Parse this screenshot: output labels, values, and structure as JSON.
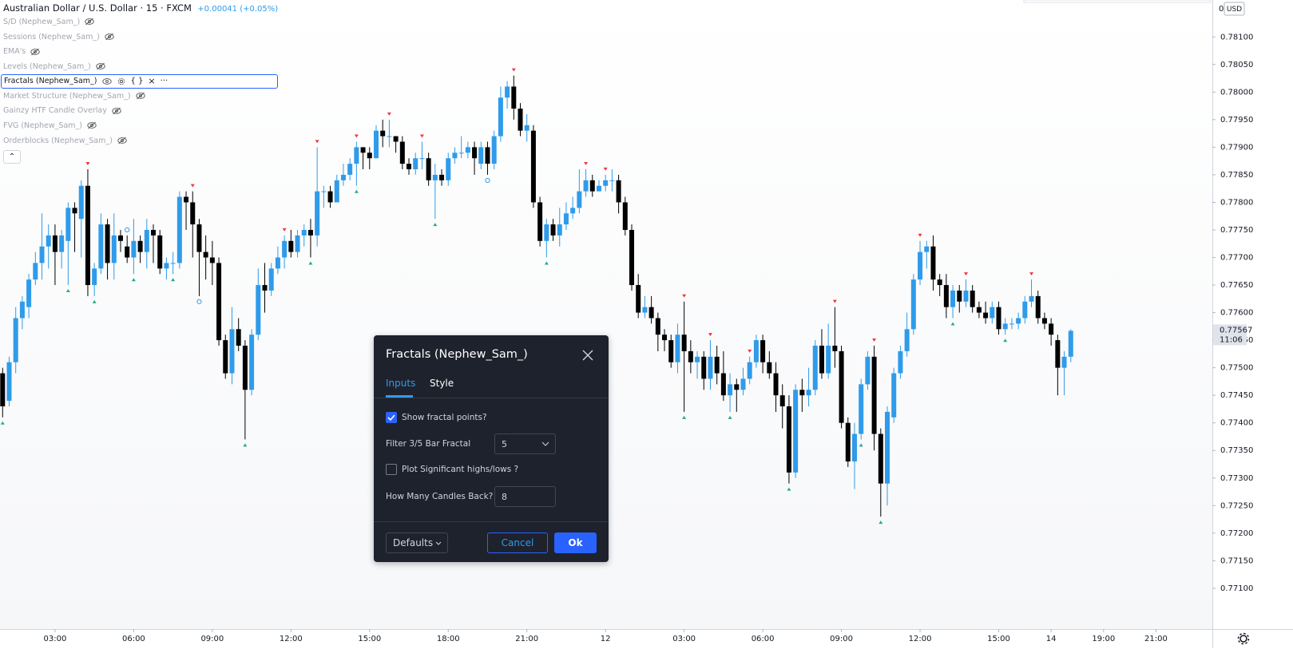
{
  "legend": {
    "symbol": "Australian Dollar / U.S. Dollar · 15 · FXCM",
    "change": "+0.00041 (+0.05%)"
  },
  "indicators": [
    "S/D (Nephew_Sam_)",
    "Sessions (Nephew_Sam_)",
    "EMA's",
    "Levels (Nephew_Sam_)",
    "Fractals (Nephew_Sam_)",
    "Market Structure (Nephew_Sam_)",
    "Gainzy HTF Candle Overlay",
    "FVG (Nephew_Sam_)",
    "Orderblocks (Nephew_Sam_)"
  ],
  "price_axis": {
    "top_label": "0",
    "currency": "USD"
  },
  "chart_data": {
    "type": "candlestick",
    "up_color": "#2f9bea",
    "down_color": "#000000",
    "high_marker_color": "#f23645",
    "low_marker_color": "#22ab94",
    "circle_color": "#2f9bea",
    "xlim": [
      -0.4,
      184.6
    ],
    "ylim": [
      0.77026,
      0.78167
    ],
    "xticks": [
      {
        "value": 8,
        "label": "03:00"
      },
      {
        "value": 20,
        "label": "06:00"
      },
      {
        "value": 32,
        "label": "09:00"
      },
      {
        "value": 44,
        "label": "12:00"
      },
      {
        "value": 56,
        "label": "15:00"
      },
      {
        "value": 68,
        "label": "18:00"
      },
      {
        "value": 80,
        "label": "21:00"
      },
      {
        "value": 92,
        "label": "12"
      },
      {
        "value": 104,
        "label": "03:00"
      },
      {
        "value": 116,
        "label": "06:00"
      },
      {
        "value": 128,
        "label": "09:00"
      },
      {
        "value": 140,
        "label": "12:00"
      },
      {
        "value": 152,
        "label": "15:00"
      },
      {
        "value": 160,
        "label": "14"
      },
      {
        "value": 168,
        "label": "19:00"
      },
      {
        "value": 176,
        "label": "21:00"
      }
    ],
    "yticks": [
      {
        "value": 0.781,
        "label": "0.78100"
      },
      {
        "value": 0.7805,
        "label": "0.78050"
      },
      {
        "value": 0.78,
        "label": "0.78000"
      },
      {
        "value": 0.7795,
        "label": "0.77950"
      },
      {
        "value": 0.779,
        "label": "0.77900"
      },
      {
        "value": 0.7785,
        "label": "0.77850"
      },
      {
        "value": 0.778,
        "label": "0.77800"
      },
      {
        "value": 0.7775,
        "label": "0.77750"
      },
      {
        "value": 0.777,
        "label": "0.77700"
      },
      {
        "value": 0.7765,
        "label": "0.77650"
      },
      {
        "value": 0.776,
        "label": "0.77600"
      },
      {
        "value": 0.7755,
        "label": "0.77550"
      },
      {
        "value": 0.775,
        "label": "0.77500"
      },
      {
        "value": 0.7745,
        "label": "0.77450"
      },
      {
        "value": 0.774,
        "label": "0.77400"
      },
      {
        "value": 0.7735,
        "label": "0.77350"
      },
      {
        "value": 0.773,
        "label": "0.77300"
      },
      {
        "value": 0.7725,
        "label": "0.77250"
      },
      {
        "value": 0.772,
        "label": "0.77200"
      },
      {
        "value": 0.7715,
        "label": "0.77150"
      },
      {
        "value": 0.771,
        "label": "0.77100"
      }
    ],
    "last_price": {
      "value": 0.77567,
      "label": "0.77567"
    },
    "countdown": "11:06",
    "candles": [
      [
        0.7749,
        0.775,
        0.7741,
        0.7743
      ],
      [
        0.7744,
        0.7752,
        0.7743,
        0.7751
      ],
      [
        0.7751,
        0.7761,
        0.7749,
        0.7759
      ],
      [
        0.7759,
        0.7763,
        0.7757,
        0.7762
      ],
      [
        0.7761,
        0.7767,
        0.7759,
        0.7766
      ],
      [
        0.7766,
        0.7771,
        0.7765,
        0.7769
      ],
      [
        0.7769,
        0.7778,
        0.7766,
        0.7772
      ],
      [
        0.7772,
        0.7776,
        0.7768,
        0.7774
      ],
      [
        0.7774,
        0.7776,
        0.7765,
        0.7771
      ],
      [
        0.7771,
        0.7775,
        0.7768,
        0.7774
      ],
      [
        0.7773,
        0.778,
        0.7765,
        0.7779
      ],
      [
        0.7779,
        0.778,
        0.7771,
        0.7778
      ],
      [
        0.7777,
        0.7784,
        0.777,
        0.7783
      ],
      [
        0.7783,
        0.7786,
        0.7763,
        0.7765
      ],
      [
        0.7765,
        0.7769,
        0.7763,
        0.7768
      ],
      [
        0.7768,
        0.7778,
        0.7767,
        0.7776
      ],
      [
        0.7776,
        0.7777,
        0.7766,
        0.7769
      ],
      [
        0.7769,
        0.7778,
        0.7766,
        0.7774
      ],
      [
        0.7774,
        0.7775,
        0.7771,
        0.7773
      ],
      [
        0.7772,
        0.7774,
        0.7769,
        0.777
      ],
      [
        0.777,
        0.7777,
        0.7767,
        0.7773
      ],
      [
        0.7773,
        0.7774,
        0.7769,
        0.7771
      ],
      [
        0.7771,
        0.7777,
        0.7768,
        0.7775
      ],
      [
        0.7775,
        0.7776,
        0.7769,
        0.7774
      ],
      [
        0.7774,
        0.7775,
        0.7767,
        0.7768
      ],
      [
        0.7768,
        0.777,
        0.7766,
        0.7769
      ],
      [
        0.7769,
        0.7771,
        0.7767,
        0.7769
      ],
      [
        0.7769,
        0.7782,
        0.7768,
        0.7781
      ],
      [
        0.7781,
        0.7782,
        0.7775,
        0.778
      ],
      [
        0.778,
        0.7782,
        0.777,
        0.7776
      ],
      [
        0.7776,
        0.7777,
        0.7763,
        0.7771
      ],
      [
        0.7771,
        0.7774,
        0.7766,
        0.777
      ],
      [
        0.777,
        0.7773,
        0.7765,
        0.7769
      ],
      [
        0.7769,
        0.777,
        0.7754,
        0.7755
      ],
      [
        0.7755,
        0.7756,
        0.7748,
        0.7749
      ],
      [
        0.7749,
        0.7761,
        0.7747,
        0.7757
      ],
      [
        0.7757,
        0.7759,
        0.7753,
        0.7754
      ],
      [
        0.7754,
        0.7755,
        0.7737,
        0.7746
      ],
      [
        0.7746,
        0.7757,
        0.7745,
        0.7756
      ],
      [
        0.7756,
        0.7768,
        0.7755,
        0.7765
      ],
      [
        0.7765,
        0.7769,
        0.776,
        0.7764
      ],
      [
        0.7764,
        0.7769,
        0.7763,
        0.7768
      ],
      [
        0.7768,
        0.7772,
        0.7767,
        0.777
      ],
      [
        0.777,
        0.7774,
        0.7768,
        0.7773
      ],
      [
        0.7773,
        0.7775,
        0.777,
        0.7771
      ],
      [
        0.7771,
        0.7775,
        0.777,
        0.7774
      ],
      [
        0.7774,
        0.7776,
        0.7772,
        0.7775
      ],
      [
        0.7775,
        0.7777,
        0.777,
        0.7774
      ],
      [
        0.7774,
        0.779,
        0.7772,
        0.7782
      ],
      [
        0.7782,
        0.7783,
        0.7779,
        0.7782
      ],
      [
        0.7782,
        0.7783,
        0.7779,
        0.778
      ],
      [
        0.778,
        0.7785,
        0.778,
        0.7784
      ],
      [
        0.7784,
        0.7787,
        0.7783,
        0.7785
      ],
      [
        0.7785,
        0.7788,
        0.7784,
        0.7787
      ],
      [
        0.7787,
        0.7791,
        0.7783,
        0.779
      ],
      [
        0.779,
        0.779,
        0.7786,
        0.7789
      ],
      [
        0.7789,
        0.779,
        0.7786,
        0.7788
      ],
      [
        0.7788,
        0.7794,
        0.7788,
        0.7793
      ],
      [
        0.7793,
        0.7795,
        0.779,
        0.7792
      ],
      [
        0.7792,
        0.7795,
        0.779,
        0.7792
      ],
      [
        0.7792,
        0.7792,
        0.7789,
        0.7791
      ],
      [
        0.7791,
        0.7792,
        0.7786,
        0.7787
      ],
      [
        0.7787,
        0.7788,
        0.7785,
        0.7786
      ],
      [
        0.7786,
        0.7789,
        0.7785,
        0.7788
      ],
      [
        0.7788,
        0.7791,
        0.7786,
        0.7788
      ],
      [
        0.7788,
        0.7789,
        0.7783,
        0.7784
      ],
      [
        0.7784,
        0.7787,
        0.7777,
        0.7785
      ],
      [
        0.7785,
        0.7786,
        0.7783,
        0.7784
      ],
      [
        0.7784,
        0.7789,
        0.7783,
        0.7788
      ],
      [
        0.7788,
        0.779,
        0.7787,
        0.7789
      ],
      [
        0.7789,
        0.7792,
        0.7788,
        0.7789
      ],
      [
        0.7789,
        0.7791,
        0.7788,
        0.779
      ],
      [
        0.779,
        0.7791,
        0.7785,
        0.7788
      ],
      [
        0.7787,
        0.7791,
        0.7786,
        0.779
      ],
      [
        0.779,
        0.7791,
        0.7785,
        0.7787
      ],
      [
        0.7787,
        0.7793,
        0.7786,
        0.7792
      ],
      [
        0.7792,
        0.7801,
        0.7791,
        0.7799
      ],
      [
        0.7799,
        0.7802,
        0.7797,
        0.7801
      ],
      [
        0.7801,
        0.7803,
        0.7795,
        0.7797
      ],
      [
        0.7797,
        0.7798,
        0.7792,
        0.7793
      ],
      [
        0.7793,
        0.7796,
        0.7791,
        0.7794
      ],
      [
        0.7793,
        0.7794,
        0.7779,
        0.778
      ],
      [
        0.778,
        0.7781,
        0.7772,
        0.7773
      ],
      [
        0.7773,
        0.7777,
        0.777,
        0.7776
      ],
      [
        0.7776,
        0.7777,
        0.7773,
        0.7774
      ],
      [
        0.7774,
        0.7779,
        0.7772,
        0.7776
      ],
      [
        0.7776,
        0.778,
        0.7775,
        0.7778
      ],
      [
        0.7778,
        0.7781,
        0.7777,
        0.7779
      ],
      [
        0.7779,
        0.7786,
        0.7778,
        0.7782
      ],
      [
        0.7782,
        0.7786,
        0.7781,
        0.7784
      ],
      [
        0.7784,
        0.7785,
        0.7781,
        0.7782
      ],
      [
        0.7782,
        0.7784,
        0.7782,
        0.7783
      ],
      [
        0.7783,
        0.7785,
        0.7782,
        0.7784
      ],
      [
        0.7784,
        0.7786,
        0.7782,
        0.7784
      ],
      [
        0.7784,
        0.7785,
        0.7778,
        0.778
      ],
      [
        0.778,
        0.7781,
        0.7774,
        0.7775
      ],
      [
        0.7775,
        0.7776,
        0.7764,
        0.7765
      ],
      [
        0.7765,
        0.7767,
        0.7759,
        0.776
      ],
      [
        0.776,
        0.7763,
        0.7759,
        0.7761
      ],
      [
        0.7761,
        0.7763,
        0.7758,
        0.7759
      ],
      [
        0.7759,
        0.776,
        0.7753,
        0.7756
      ],
      [
        0.7756,
        0.7757,
        0.7753,
        0.7755
      ],
      [
        0.7755,
        0.7756,
        0.775,
        0.7751
      ],
      [
        0.7751,
        0.7758,
        0.7749,
        0.7756
      ],
      [
        0.7756,
        0.7762,
        0.7742,
        0.7753
      ],
      [
        0.7753,
        0.7755,
        0.7749,
        0.7751
      ],
      [
        0.7751,
        0.7753,
        0.7748,
        0.7752
      ],
      [
        0.7752,
        0.7753,
        0.7746,
        0.7748
      ],
      [
        0.7748,
        0.7755,
        0.7746,
        0.7752
      ],
      [
        0.7752,
        0.7754,
        0.7747,
        0.7749
      ],
      [
        0.7749,
        0.7753,
        0.7744,
        0.7745
      ],
      [
        0.7745,
        0.7749,
        0.7742,
        0.7747
      ],
      [
        0.7747,
        0.7748,
        0.7742,
        0.7746
      ],
      [
        0.7746,
        0.775,
        0.7745,
        0.7748
      ],
      [
        0.7748,
        0.7752,
        0.7747,
        0.7751
      ],
      [
        0.7751,
        0.7756,
        0.775,
        0.7755
      ],
      [
        0.7755,
        0.7756,
        0.7749,
        0.7751
      ],
      [
        0.7751,
        0.7753,
        0.7748,
        0.7749
      ],
      [
        0.7749,
        0.7751,
        0.7742,
        0.7745
      ],
      [
        0.7745,
        0.7747,
        0.7739,
        0.7743
      ],
      [
        0.7743,
        0.7745,
        0.7729,
        0.7731
      ],
      [
        0.7731,
        0.7747,
        0.773,
        0.7746
      ],
      [
        0.7746,
        0.7748,
        0.7742,
        0.7745
      ],
      [
        0.7745,
        0.775,
        0.7743,
        0.7746
      ],
      [
        0.7746,
        0.7755,
        0.7745,
        0.7754
      ],
      [
        0.7754,
        0.7757,
        0.7748,
        0.7749
      ],
      [
        0.7749,
        0.7758,
        0.7748,
        0.7754
      ],
      [
        0.7754,
        0.7761,
        0.775,
        0.7753
      ],
      [
        0.7753,
        0.7754,
        0.7739,
        0.774
      ],
      [
        0.774,
        0.7741,
        0.7732,
        0.7733
      ],
      [
        0.7733,
        0.774,
        0.7728,
        0.7738
      ],
      [
        0.7738,
        0.7748,
        0.7737,
        0.7747
      ],
      [
        0.7747,
        0.7753,
        0.7746,
        0.7752
      ],
      [
        0.7752,
        0.7754,
        0.7735,
        0.7738
      ],
      [
        0.7738,
        0.7739,
        0.7723,
        0.7729
      ],
      [
        0.7729,
        0.7743,
        0.7725,
        0.7742
      ],
      [
        0.7741,
        0.775,
        0.774,
        0.7749
      ],
      [
        0.7749,
        0.7754,
        0.7748,
        0.7753
      ],
      [
        0.7753,
        0.776,
        0.7752,
        0.7757
      ],
      [
        0.7757,
        0.7767,
        0.7756,
        0.7766
      ],
      [
        0.7766,
        0.7773,
        0.7765,
        0.7771
      ],
      [
        0.7771,
        0.7773,
        0.7768,
        0.7772
      ],
      [
        0.7772,
        0.7774,
        0.7764,
        0.7766
      ],
      [
        0.7766,
        0.7767,
        0.7763,
        0.7765
      ],
      [
        0.7765,
        0.7767,
        0.7759,
        0.7761
      ],
      [
        0.7761,
        0.7765,
        0.7759,
        0.7764
      ],
      [
        0.7764,
        0.7765,
        0.776,
        0.7762
      ],
      [
        0.7762,
        0.7766,
        0.7761,
        0.7764
      ],
      [
        0.7764,
        0.7765,
        0.776,
        0.7761
      ],
      [
        0.7761,
        0.7762,
        0.7759,
        0.776
      ],
      [
        0.776,
        0.7762,
        0.7758,
        0.7759
      ],
      [
        0.7759,
        0.7762,
        0.7758,
        0.7761
      ],
      [
        0.7761,
        0.7762,
        0.7756,
        0.7757
      ],
      [
        0.7757,
        0.7759,
        0.7756,
        0.7758
      ],
      [
        0.7758,
        0.7759,
        0.7757,
        0.7758
      ],
      [
        0.7758,
        0.776,
        0.7757,
        0.7759
      ],
      [
        0.7759,
        0.7763,
        0.7758,
        0.7762
      ],
      [
        0.7762,
        0.7766,
        0.7761,
        0.7763
      ],
      [
        0.7763,
        0.7764,
        0.7758,
        0.7759
      ],
      [
        0.7759,
        0.776,
        0.7757,
        0.7758
      ],
      [
        0.7758,
        0.7759,
        0.7754,
        0.7756
      ],
      [
        0.7755,
        0.7756,
        0.7745,
        0.775
      ],
      [
        0.775,
        0.7753,
        0.7745,
        0.7752
      ],
      [
        0.7752,
        0.7757,
        0.7751,
        0.77567
      ]
    ],
    "fractal_highs": [
      13,
      29,
      43,
      48,
      54,
      59,
      64,
      78,
      89,
      92,
      104,
      108,
      114,
      127,
      133,
      140,
      147,
      157
    ],
    "fractal_lows": [
      0,
      10,
      14,
      20,
      26,
      37,
      47,
      54,
      66,
      83,
      104,
      111,
      120,
      131,
      134,
      145,
      153
    ],
    "circle_highs": [
      19
    ],
    "circle_lows": [
      30,
      74
    ]
  },
  "dialog": {
    "title": "Fractals (Nephew_Sam_)",
    "tabs": [
      "Inputs",
      "Style"
    ],
    "show_points": {
      "label": "Show fractal points?",
      "checked": true
    },
    "filter": {
      "label": "Filter 3/5 Bar Fractal",
      "value": 5
    },
    "significant": {
      "label": "Plot Significant highs/lows ?",
      "checked": false
    },
    "candles_back": {
      "label": "How Many Candles Back?",
      "value": 8
    },
    "buttons": {
      "defaults": "Defaults",
      "cancel": "Cancel",
      "ok": "Ok"
    }
  }
}
